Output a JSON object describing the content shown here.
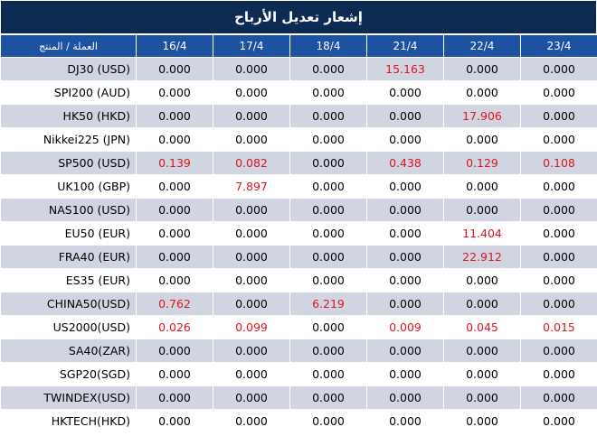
{
  "title": "إشعار تعديل الأرباح",
  "header": {
    "product_col": "العملة / المنتج",
    "dates": [
      "16/4",
      "17/4",
      "18/4",
      "21/4",
      "22/4",
      "23/4"
    ]
  },
  "colors": {
    "highlight": "#e0141e",
    "header_bg": "#1d52a3",
    "title_bg": "#0d2a52",
    "alt_row": "#d0d5e1"
  },
  "rows": [
    {
      "name": "DJ30 (USD)",
      "values": [
        "0.000",
        "0.000",
        "0.000",
        "15.163",
        "0.000",
        "0.000"
      ],
      "highlight": [
        false,
        false,
        false,
        true,
        false,
        false
      ]
    },
    {
      "name": "SPI200 (AUD)",
      "values": [
        "0.000",
        "0.000",
        "0.000",
        "0.000",
        "0.000",
        "0.000"
      ],
      "highlight": [
        false,
        false,
        false,
        false,
        false,
        false
      ]
    },
    {
      "name": "HK50 (HKD)",
      "values": [
        "0.000",
        "0.000",
        "0.000",
        "0.000",
        "17.906",
        "0.000"
      ],
      "highlight": [
        false,
        false,
        false,
        false,
        true,
        false
      ]
    },
    {
      "name": "Nikkei225 (JPN)",
      "values": [
        "0.000",
        "0.000",
        "0.000",
        "0.000",
        "0.000",
        "0.000"
      ],
      "highlight": [
        false,
        false,
        false,
        false,
        false,
        false
      ]
    },
    {
      "name": "SP500 (USD)",
      "values": [
        "0.139",
        "0.082",
        "0.000",
        "0.438",
        "0.129",
        "0.108"
      ],
      "highlight": [
        true,
        true,
        false,
        true,
        true,
        true
      ]
    },
    {
      "name": "UK100 (GBP)",
      "values": [
        "0.000",
        "7.897",
        "0.000",
        "0.000",
        "0.000",
        "0.000"
      ],
      "highlight": [
        false,
        true,
        false,
        false,
        false,
        false
      ]
    },
    {
      "name": "NAS100 (USD)",
      "values": [
        "0.000",
        "0.000",
        "0.000",
        "0.000",
        "0.000",
        "0.000"
      ],
      "highlight": [
        false,
        false,
        false,
        false,
        false,
        false
      ]
    },
    {
      "name": "EU50 (EUR)",
      "values": [
        "0.000",
        "0.000",
        "0.000",
        "0.000",
        "11.404",
        "0.000"
      ],
      "highlight": [
        false,
        false,
        false,
        false,
        true,
        false
      ]
    },
    {
      "name": "FRA40 (EUR)",
      "values": [
        "0.000",
        "0.000",
        "0.000",
        "0.000",
        "22.912",
        "0.000"
      ],
      "highlight": [
        false,
        false,
        false,
        false,
        true,
        false
      ]
    },
    {
      "name": "ES35 (EUR)",
      "values": [
        "0.000",
        "0.000",
        "0.000",
        "0.000",
        "0.000",
        "0.000"
      ],
      "highlight": [
        false,
        false,
        false,
        false,
        false,
        false
      ]
    },
    {
      "name": "CHINA50(USD)",
      "values": [
        "0.762",
        "0.000",
        "6.219",
        "0.000",
        "0.000",
        "0.000"
      ],
      "highlight": [
        true,
        false,
        true,
        false,
        false,
        false
      ]
    },
    {
      "name": "US2000(USD)",
      "values": [
        "0.026",
        "0.099",
        "0.000",
        "0.009",
        "0.045",
        "0.015"
      ],
      "highlight": [
        true,
        true,
        false,
        true,
        true,
        true
      ]
    },
    {
      "name": "SA40(ZAR)",
      "values": [
        "0.000",
        "0.000",
        "0.000",
        "0.000",
        "0.000",
        "0.000"
      ],
      "highlight": [
        false,
        false,
        false,
        false,
        false,
        false
      ]
    },
    {
      "name": "SGP20(SGD)",
      "values": [
        "0.000",
        "0.000",
        "0.000",
        "0.000",
        "0.000",
        "0.000"
      ],
      "highlight": [
        false,
        false,
        false,
        false,
        false,
        false
      ]
    },
    {
      "name": "TWINDEX(USD)",
      "values": [
        "0.000",
        "0.000",
        "0.000",
        "0.000",
        "0.000",
        "0.000"
      ],
      "highlight": [
        false,
        false,
        false,
        false,
        false,
        false
      ]
    },
    {
      "name": "HKTECH(HKD)",
      "values": [
        "0.000",
        "0.000",
        "0.000",
        "0.000",
        "0.000",
        "0.000"
      ],
      "highlight": [
        false,
        false,
        false,
        false,
        false,
        false
      ]
    }
  ]
}
